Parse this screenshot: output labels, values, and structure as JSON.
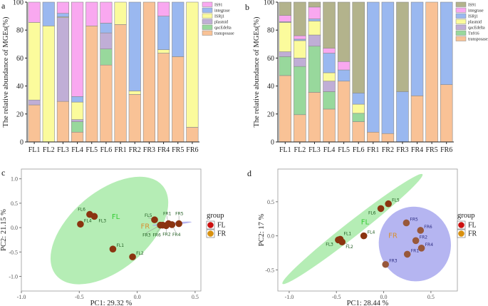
{
  "chart_data": [
    {
      "panel": "a",
      "type": "bar",
      "stacked": true,
      "ylabel": "The relative abundance of MGEs(%)",
      "ylim": [
        0,
        100
      ],
      "yticks": [
        "0",
        "20",
        "40",
        "60",
        "80",
        "100"
      ],
      "legend_position": "right",
      "categories": [
        "FL1",
        "FL2",
        "FL3",
        "FL4",
        "FL5",
        "FL6",
        "FR1",
        "FR2",
        "FR3",
        "FR4",
        "FR5",
        "FR6"
      ],
      "series": [
        {
          "name": "transposase",
          "color": "#f9c296",
          "values": [
            26.5,
            0,
            29,
            7,
            83,
            55,
            84,
            34,
            100,
            63.5,
            61,
            10.5
          ]
        },
        {
          "name": "qacEdelta",
          "color": "#98d89c",
          "values": [
            0,
            0,
            0,
            7.5,
            0,
            11.5,
            0,
            0,
            0,
            0,
            0,
            0
          ]
        },
        {
          "name": "plasmid",
          "color": "#c0aed6",
          "values": [
            3.5,
            0,
            60,
            1.5,
            0,
            11.5,
            0,
            0,
            0,
            0,
            0,
            0
          ]
        },
        {
          "name": "ISRj1",
          "color": "#fbfb9c",
          "values": [
            55.5,
            83,
            0.5,
            12.5,
            0,
            0,
            16,
            2.5,
            0,
            2.5,
            0,
            89.5
          ]
        },
        {
          "name": "integrase",
          "color": "#9ab8f0",
          "values": [
            0,
            17,
            2.5,
            4,
            0,
            7,
            0,
            63.5,
            0,
            24,
            39,
            0
          ]
        },
        {
          "name": "IS91",
          "color": "#f9a8f0",
          "values": [
            14.5,
            0,
            8,
            67.5,
            17,
            15,
            0,
            0,
            0,
            10,
            0,
            0
          ]
        }
      ]
    },
    {
      "panel": "b",
      "type": "bar",
      "stacked": true,
      "ylabel": "The relative abundance of MGEs(%)",
      "ylim": [
        0,
        100
      ],
      "yticks": [
        "0",
        "20",
        "40",
        "60",
        "80",
        "100"
      ],
      "legend_position": "right",
      "categories": [
        "FL1",
        "FL2",
        "FL3",
        "FL4",
        "FL5",
        "FL6",
        "FR1",
        "FR2",
        "FR3",
        "FR4",
        "FR5",
        "FR6"
      ],
      "series": [
        {
          "name": "transposase",
          "color": "#f9c296",
          "values": [
            47.5,
            19.5,
            35.5,
            23.5,
            43.5,
            14.5,
            7,
            6,
            0,
            33,
            100,
            41
          ]
        },
        {
          "name": "Tn916",
          "color": "#98d89c",
          "values": [
            13.5,
            34.5,
            33,
            12.5,
            0,
            6,
            0,
            0,
            0,
            0,
            0,
            0
          ]
        },
        {
          "name": "qacEdelta",
          "color": "#c0aed6",
          "values": [
            3.5,
            6,
            8,
            7.5,
            0,
            0,
            0,
            0,
            0,
            0,
            0,
            0
          ]
        },
        {
          "name": "plasmid",
          "color": "#fbfb9c",
          "values": [
            21,
            12.5,
            10,
            6,
            0,
            6.5,
            0,
            0,
            0,
            0,
            0,
            0
          ]
        },
        {
          "name": "ISRj1",
          "color": "#9ab8f0",
          "values": [
            0.5,
            1,
            1.5,
            14,
            8,
            8,
            93,
            94,
            36,
            67,
            0,
            59
          ]
        },
        {
          "name": "integrase",
          "color": "#f9a8f0",
          "values": [
            4.5,
            2.5,
            8.5,
            3.5,
            6,
            0,
            0,
            0,
            0,
            0,
            0,
            0
          ]
        },
        {
          "name": "IS91",
          "color": "#b3b38c",
          "values": [
            9.5,
            24,
            3.5,
            33,
            42.5,
            65,
            0,
            0,
            64,
            0,
            0,
            0
          ]
        }
      ]
    },
    {
      "panel": "c",
      "type": "scatter",
      "xlabel": "PC1: 29.32 %",
      "ylabel": "PC2: 21.15 %",
      "xlim": [
        -1.0,
        0.55
      ],
      "ylim": [
        -1.3,
        1.2
      ],
      "xticks": [
        "-1.0",
        "-0.5",
        "0.0",
        "0.5"
      ],
      "yticks": [
        "-1.0",
        "-0.5",
        "0.0",
        "0.5",
        "1.0"
      ],
      "grid": false,
      "legend_title": "group",
      "legend_position": "right",
      "groups": [
        {
          "name": "FL",
          "legend_color": "#cc1010",
          "ellipse_color": "#a8eaa8",
          "label_color": "#33cc33"
        },
        {
          "name": "FR",
          "legend_color": "#d8900e",
          "ellipse_color": "#a8a8ee",
          "label_color": "#d89030"
        }
      ],
      "points": [
        {
          "label": "FL1",
          "group": "FL",
          "x": -0.21,
          "y": -0.44
        },
        {
          "label": "FL2",
          "group": "FL",
          "x": -0.04,
          "y": -0.6
        },
        {
          "label": "FL3",
          "group": "FL",
          "x": -0.37,
          "y": 0.23
        },
        {
          "label": "FL4",
          "group": "FL",
          "x": -0.49,
          "y": 0.07
        },
        {
          "label": "FL5",
          "group": "FL",
          "x": 0.15,
          "y": 0.16
        },
        {
          "label": "FL6",
          "group": "FL",
          "x": -0.41,
          "y": 0.27
        },
        {
          "label": "FR1",
          "group": "FR",
          "x": 0.27,
          "y": 0.08
        },
        {
          "label": "FR2",
          "group": "FR",
          "x": 0.25,
          "y": 0.04
        },
        {
          "label": "FR3",
          "group": "FR",
          "x": 0.2,
          "y": 0.05
        },
        {
          "label": "FR4",
          "group": "FR",
          "x": 0.3,
          "y": 0.06
        },
        {
          "label": "FR5",
          "group": "FR",
          "x": 0.36,
          "y": 0.08
        },
        {
          "label": "FR6",
          "group": "FR",
          "x": 0.22,
          "y": 0.05
        }
      ]
    },
    {
      "panel": "d",
      "type": "scatter",
      "xlabel": "PC1: 28.44 %",
      "ylabel": "PC2: 17 %",
      "xlim": [
        -1.12,
        0.78
      ],
      "ylim": [
        -0.81,
        0.98
      ],
      "xticks": [
        "-1.0",
        "-0.5",
        "0.0",
        "0.5"
      ],
      "yticks": [
        "-0.5",
        "0.0",
        "0.5"
      ],
      "grid": false,
      "legend_title": "group",
      "legend_position": "right",
      "groups": [
        {
          "name": "FL",
          "legend_color": "#cc1010",
          "ellipse_color": "#a8eaa8",
          "label_color": "#33cc33"
        },
        {
          "name": "FR",
          "legend_color": "#d8900e",
          "ellipse_color": "#a8a8ee",
          "label_color": "#d89030"
        }
      ],
      "points": [
        {
          "label": "FL1",
          "group": "FL",
          "x": -0.46,
          "y": -0.05
        },
        {
          "label": "FL2",
          "group": "FL",
          "x": -0.44,
          "y": -0.09
        },
        {
          "label": "FL3",
          "group": "FL",
          "x": -0.48,
          "y": -0.06
        },
        {
          "label": "FL4",
          "group": "FL",
          "x": -0.21,
          "y": 0.0
        },
        {
          "label": "FL5",
          "group": "FL",
          "x": 0.05,
          "y": 0.47
        },
        {
          "label": "FL6",
          "group": "FL",
          "x": -0.03,
          "y": 0.4
        },
        {
          "label": "FR1",
          "group": "FR",
          "x": 0.25,
          "y": -0.27
        },
        {
          "label": "FR2",
          "group": "FR",
          "x": 0.34,
          "y": -0.07
        },
        {
          "label": "FR3",
          "group": "FR",
          "x": 0.02,
          "y": -0.42
        },
        {
          "label": "FR4",
          "group": "FR",
          "x": 0.4,
          "y": -0.18
        },
        {
          "label": "FR5",
          "group": "FR",
          "x": 0.24,
          "y": 0.19
        },
        {
          "label": "FR6",
          "group": "FR",
          "x": 0.39,
          "y": 0.08
        }
      ]
    }
  ]
}
